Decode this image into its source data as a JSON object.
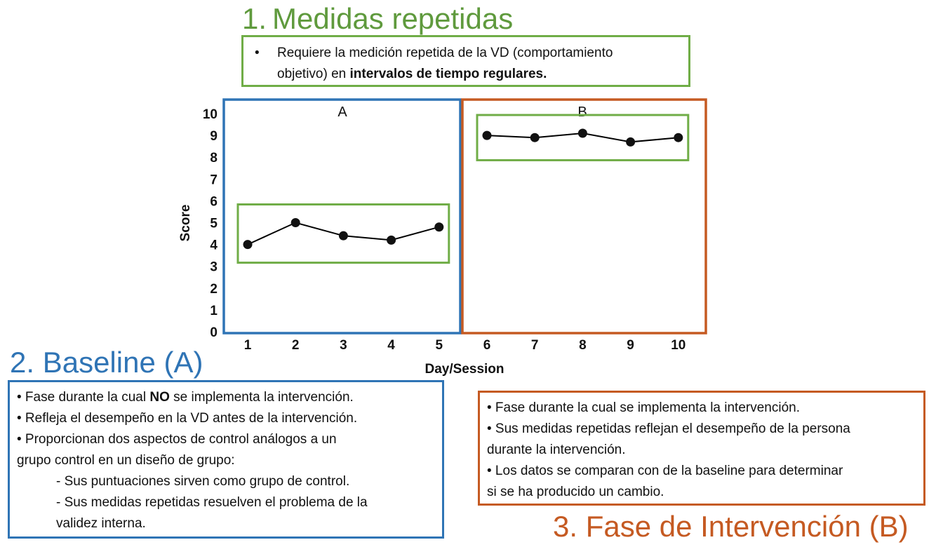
{
  "section1": {
    "number": "1.",
    "title": "Medidas repetidas",
    "bullet": "•",
    "line1": "Requiere la medición repetida de la VD (comportamiento",
    "line2_a": "objetivo) en ",
    "line2_b": "intervalos de tiempo regulares."
  },
  "section2": {
    "title": "2. Baseline (A)",
    "b1_a": "• Fase durante la cual ",
    "b1_b": "NO",
    "b1_c": " se implementa la intervención.",
    "b2": "• Refleja el desempeño en la VD antes de la intervención.",
    "b3_l1": "• Proporcionan dos aspectos de control análogos a un",
    "b3_l2": "grupo control en un diseño de grupo:",
    "sub1": "- Sus puntuaciones sirven como grupo de control.",
    "sub2_l1": "- Sus medidas repetidas resuelven el problema de la",
    "sub2_l2": "validez interna."
  },
  "section3": {
    "title": "3. Fase de Intervención (B)",
    "b1": "• Fase durante la cual se implementa la intervención.",
    "b2_l1": "• Sus medidas repetidas reflejan el desempeño de la persona",
    "b2_l2": "durante la intervención.",
    "b3_l1": "• Los datos se comparan con de la baseline para determinar",
    "b3_l2": "si se ha producido un cambio."
  },
  "chart_data": {
    "type": "line",
    "xlabel": "Day/Session",
    "ylabel": "Score",
    "ylim": [
      0,
      10
    ],
    "yticks": [
      "0",
      "1",
      "2",
      "3",
      "4",
      "5",
      "6",
      "7",
      "8",
      "9",
      "10"
    ],
    "xticks": [
      "1",
      "2",
      "3",
      "4",
      "5",
      "6",
      "7",
      "8",
      "9",
      "10"
    ],
    "phases": [
      {
        "label": "A",
        "x": [
          1,
          2,
          3,
          4,
          5
        ],
        "y": [
          4.0,
          5.0,
          4.4,
          4.2,
          4.8
        ]
      },
      {
        "label": "B",
        "x": [
          6,
          7,
          8,
          9,
          10
        ],
        "y": [
          9.0,
          8.9,
          9.1,
          8.7,
          8.9
        ]
      }
    ],
    "colors": {
      "phaseA": "#2f74b5",
      "phaseB": "#c55a22",
      "highlight": "#70ad47",
      "line": "#000000"
    }
  }
}
